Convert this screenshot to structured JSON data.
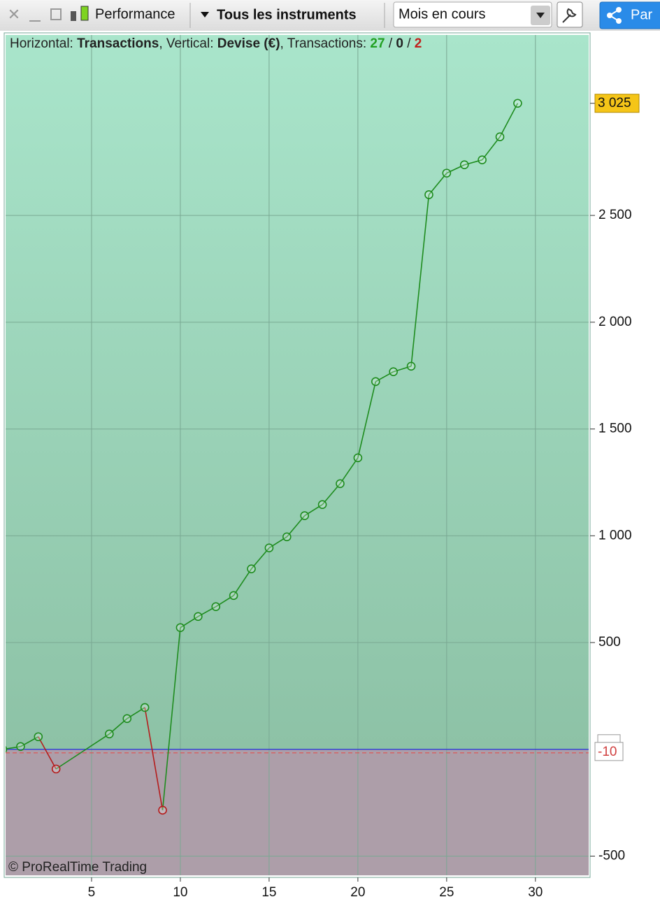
{
  "toolbar": {
    "panel": "Performance",
    "instruments": "Tous les instruments",
    "period": "Mois en cours",
    "share": "Par"
  },
  "chart_data": {
    "type": "line",
    "header": {
      "h_label": "Horizontal:",
      "h_value": "Transactions",
      "v_label": "Vertical:",
      "v_value": "Devise (€)",
      "t_label": "Transactions:",
      "wins": "27",
      "sep": "/",
      "neutral": "0",
      "losses": "2"
    },
    "x": [
      0,
      1,
      2,
      3,
      6,
      7,
      8,
      9,
      10,
      11,
      12,
      13,
      14,
      15,
      16,
      17,
      18,
      19,
      20,
      21,
      22,
      23,
      24,
      25,
      26,
      27,
      28,
      29
    ],
    "series": [
      {
        "name": "Performance",
        "color": "#1e8c1e",
        "loss_color": "#b51c1c",
        "values": [
          0,
          13,
          59,
          -92,
          72,
          144,
          196,
          -285,
          570,
          622,
          668,
          720,
          845,
          943,
          995,
          1094,
          1146,
          1244,
          1365,
          1722,
          1768,
          1794,
          2597,
          2698,
          2737,
          2760,
          2868,
          3025
        ]
      }
    ],
    "xlim": [
      0,
      33
    ],
    "ylim": [
      -590,
      3345
    ],
    "xticks": [
      5,
      10,
      15,
      20,
      25,
      30
    ],
    "yticks": [
      -500,
      500,
      {
        "value": 1000,
        "label": "1 000"
      },
      {
        "value": 1500,
        "label": "1 500"
      },
      {
        "value": 2000,
        "label": "2 000"
      },
      {
        "value": 2500,
        "label": "2 500"
      }
    ],
    "last_label": {
      "value": 3025,
      "label": "3 025"
    },
    "zero_line": 0,
    "threshold": -10,
    "grid": true,
    "copyright": "© ProRealTime Trading"
  }
}
